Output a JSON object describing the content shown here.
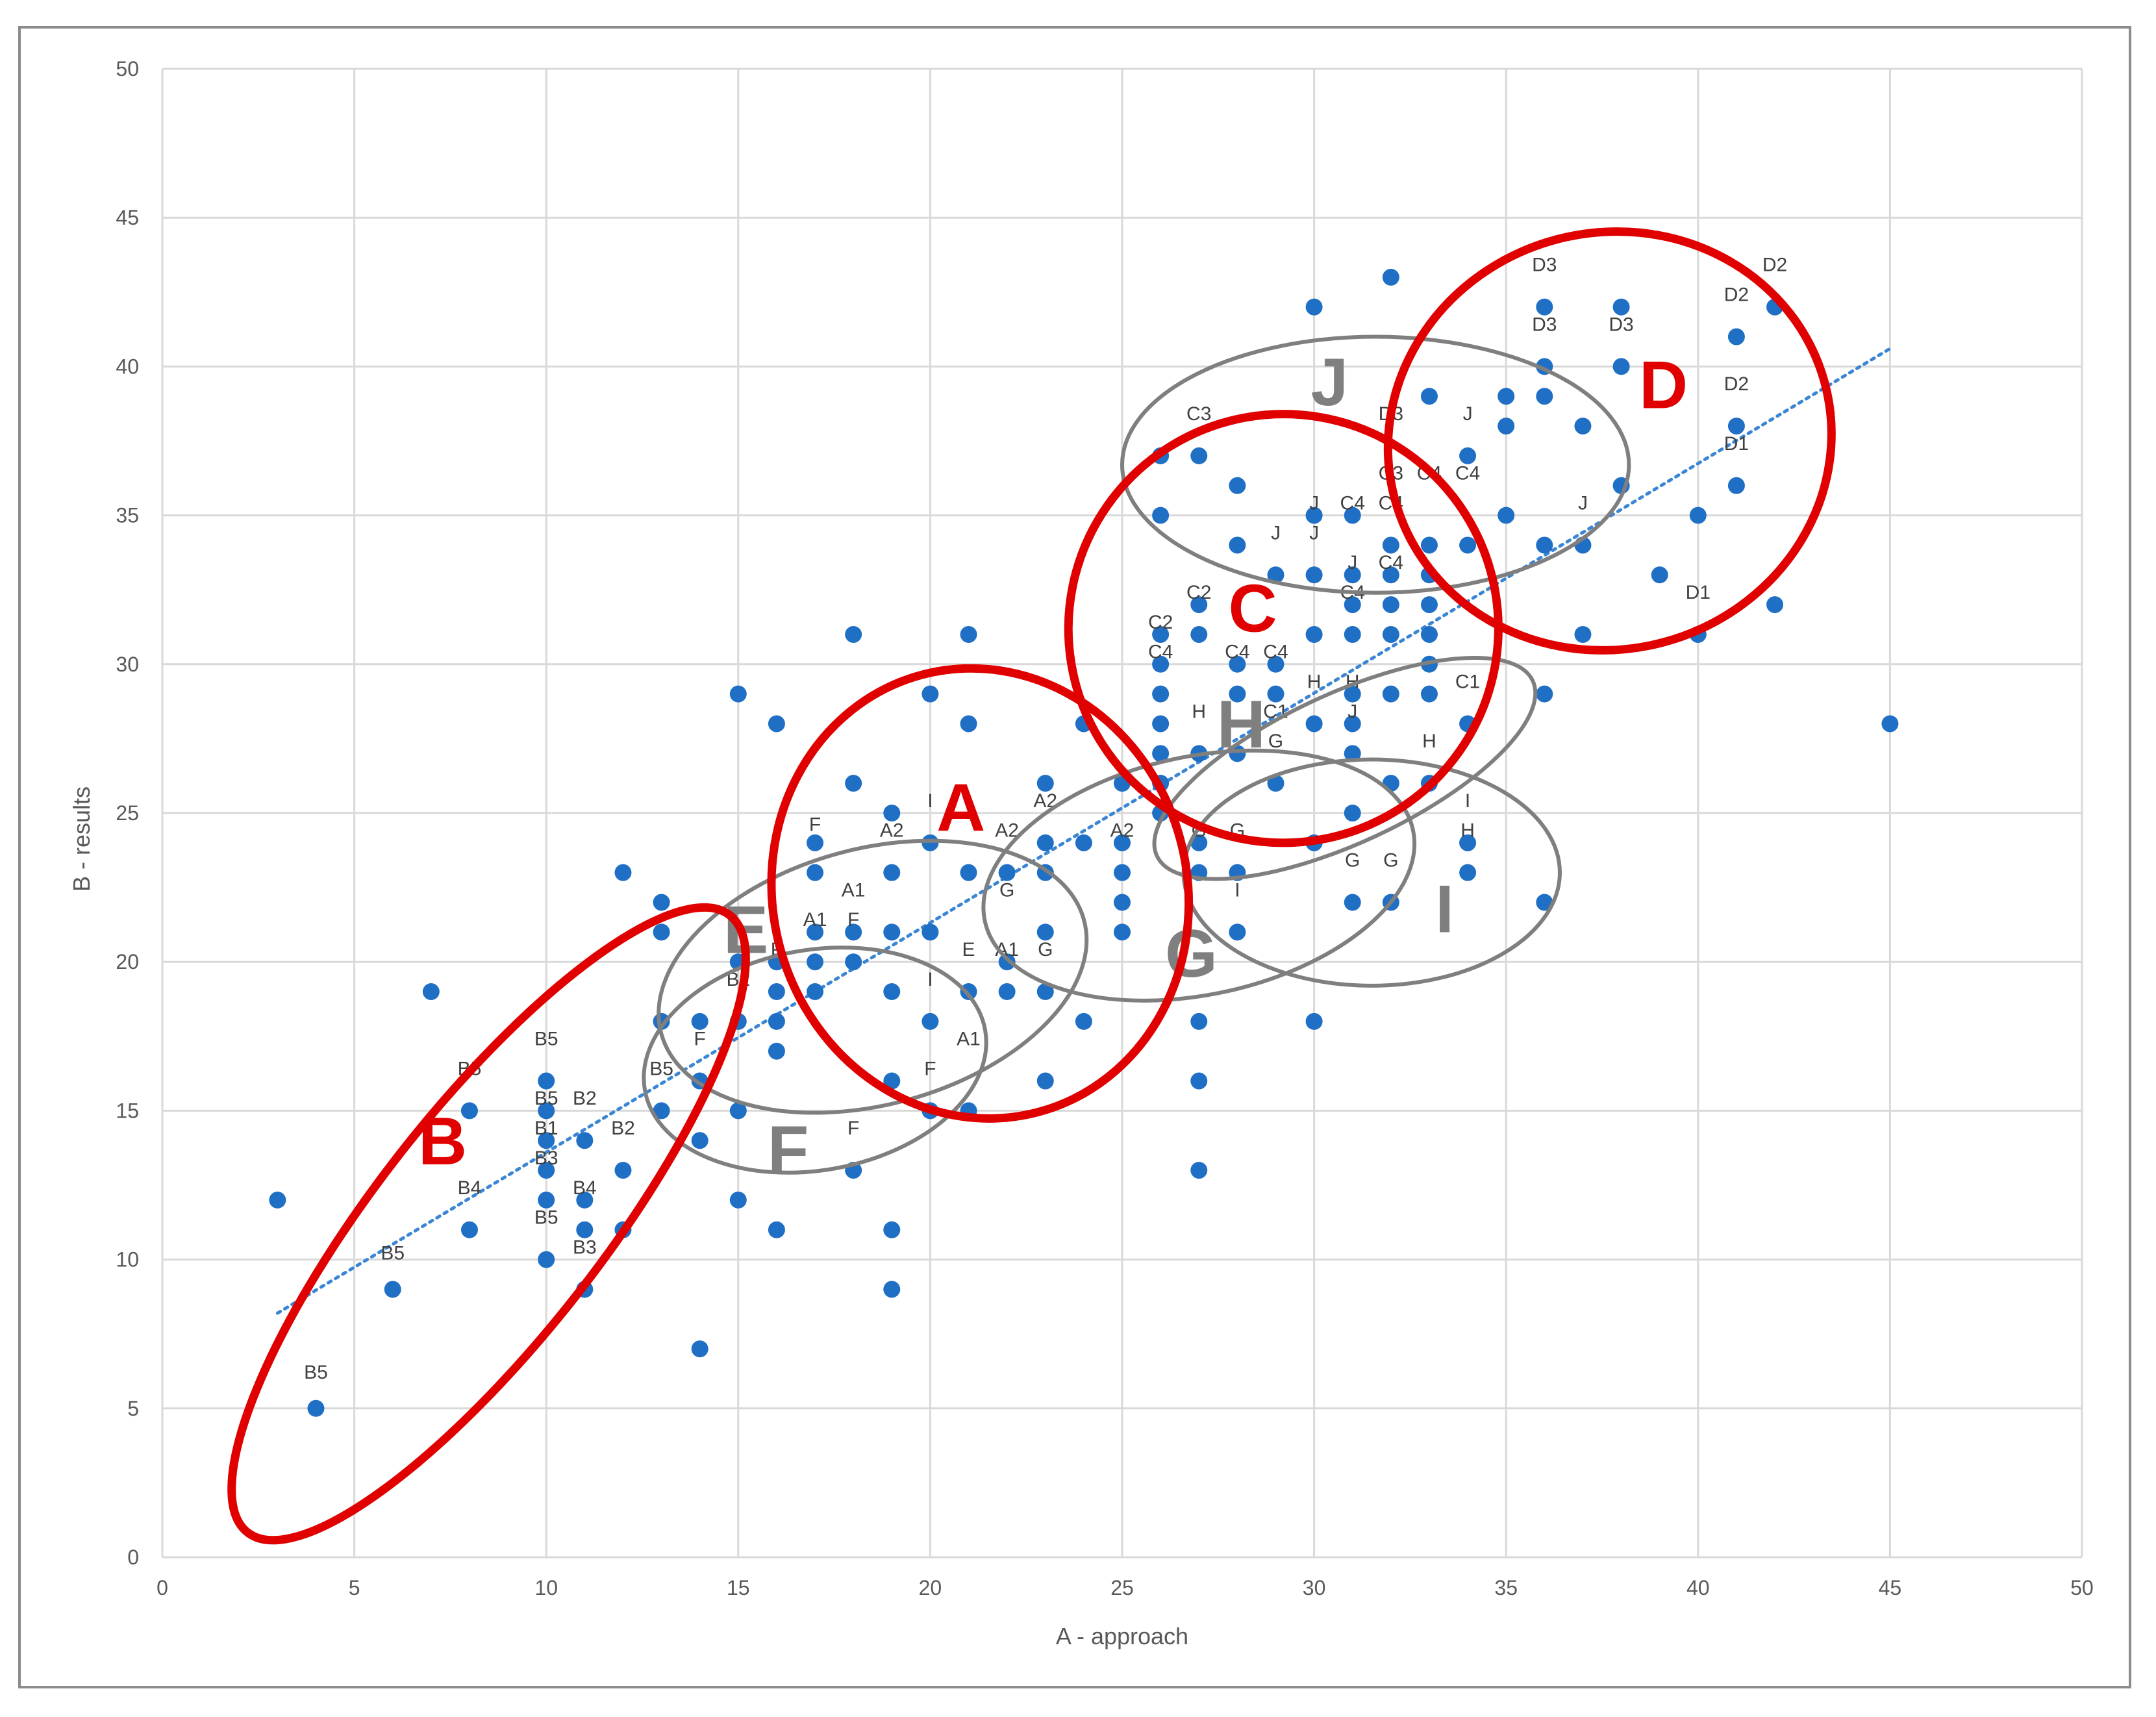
{
  "chart_data": {
    "type": "scatter",
    "title": "",
    "xlabel": "A - approach",
    "ylabel": "B - results",
    "xlim": [
      0,
      50
    ],
    "ylim": [
      0,
      50
    ],
    "xticks": [
      "0",
      "5",
      "10",
      "15",
      "20",
      "25",
      "30",
      "35",
      "40",
      "45",
      "50"
    ],
    "yticks": [
      "0",
      "5",
      "10",
      "15",
      "20",
      "25",
      "30",
      "35",
      "40",
      "45",
      "50"
    ],
    "grid": true,
    "legend": "none",
    "colors": {
      "points": "#1f6fc5",
      "trendline": "#3a86d4",
      "highlight": "#e00000",
      "group": "#7f7f7f",
      "grid": "#d9d9d9"
    },
    "points": [
      [
        3,
        12
      ],
      [
        4,
        5
      ],
      [
        6,
        9
      ],
      [
        7,
        19
      ],
      [
        8,
        15
      ],
      [
        8,
        11
      ],
      [
        10,
        16
      ],
      [
        10,
        15
      ],
      [
        10,
        14
      ],
      [
        10,
        13
      ],
      [
        10,
        12
      ],
      [
        10,
        10
      ],
      [
        11,
        14
      ],
      [
        11,
        12
      ],
      [
        11,
        11
      ],
      [
        11,
        9
      ],
      [
        12,
        23
      ],
      [
        12,
        13
      ],
      [
        12,
        11
      ],
      [
        13,
        22
      ],
      [
        13,
        21
      ],
      [
        13,
        18
      ],
      [
        13,
        15
      ],
      [
        14,
        18
      ],
      [
        14,
        16
      ],
      [
        14,
        14
      ],
      [
        14,
        7
      ],
      [
        15,
        29
      ],
      [
        15,
        20
      ],
      [
        15,
        18
      ],
      [
        15,
        15
      ],
      [
        15,
        12
      ],
      [
        16,
        28
      ],
      [
        16,
        20
      ],
      [
        16,
        19
      ],
      [
        16,
        18
      ],
      [
        16,
        17
      ],
      [
        16,
        11
      ],
      [
        17,
        24
      ],
      [
        17,
        23
      ],
      [
        17,
        21
      ],
      [
        17,
        20
      ],
      [
        17,
        19
      ],
      [
        18,
        31
      ],
      [
        18,
        26
      ],
      [
        18,
        21
      ],
      [
        18,
        20
      ],
      [
        18,
        13
      ],
      [
        19,
        25
      ],
      [
        19,
        23
      ],
      [
        19,
        21
      ],
      [
        19,
        19
      ],
      [
        19,
        16
      ],
      [
        19,
        11
      ],
      [
        19,
        9
      ],
      [
        20,
        29
      ],
      [
        20,
        24
      ],
      [
        20,
        21
      ],
      [
        20,
        18
      ],
      [
        20,
        15
      ],
      [
        21,
        31
      ],
      [
        21,
        28
      ],
      [
        21,
        23
      ],
      [
        21,
        19
      ],
      [
        21,
        15
      ],
      [
        22,
        23
      ],
      [
        22,
        20
      ],
      [
        22,
        19
      ],
      [
        23,
        26
      ],
      [
        23,
        24
      ],
      [
        23,
        23
      ],
      [
        23,
        21
      ],
      [
        23,
        19
      ],
      [
        23,
        16
      ],
      [
        24,
        28
      ],
      [
        24,
        24
      ],
      [
        24,
        18
      ],
      [
        25,
        26
      ],
      [
        25,
        24
      ],
      [
        25,
        23
      ],
      [
        25,
        22
      ],
      [
        25,
        21
      ],
      [
        26,
        37
      ],
      [
        26,
        35
      ],
      [
        26,
        31
      ],
      [
        26,
        30
      ],
      [
        26,
        29
      ],
      [
        26,
        28
      ],
      [
        26,
        27
      ],
      [
        26,
        26
      ],
      [
        26,
        25
      ],
      [
        27,
        37
      ],
      [
        27,
        32
      ],
      [
        27,
        31
      ],
      [
        27,
        27
      ],
      [
        27,
        24
      ],
      [
        27,
        23
      ],
      [
        27,
        18
      ],
      [
        27,
        16
      ],
      [
        27,
        13
      ],
      [
        28,
        36
      ],
      [
        28,
        34
      ],
      [
        28,
        30
      ],
      [
        28,
        29
      ],
      [
        28,
        27
      ],
      [
        28,
        23
      ],
      [
        28,
        21
      ],
      [
        29,
        33
      ],
      [
        29,
        30
      ],
      [
        29,
        29
      ],
      [
        29,
        26
      ],
      [
        30,
        42
      ],
      [
        30,
        35
      ],
      [
        30,
        33
      ],
      [
        30,
        31
      ],
      [
        30,
        28
      ],
      [
        30,
        24
      ],
      [
        30,
        18
      ],
      [
        31,
        35
      ],
      [
        31,
        33
      ],
      [
        31,
        32
      ],
      [
        31,
        31
      ],
      [
        31,
        29
      ],
      [
        31,
        28
      ],
      [
        31,
        27
      ],
      [
        31,
        25
      ],
      [
        31,
        22
      ],
      [
        32,
        43
      ],
      [
        32,
        34
      ],
      [
        32,
        33
      ],
      [
        32,
        32
      ],
      [
        32,
        31
      ],
      [
        32,
        29
      ],
      [
        32,
        26
      ],
      [
        32,
        22
      ],
      [
        33,
        39
      ],
      [
        33,
        34
      ],
      [
        33,
        33
      ],
      [
        33,
        32
      ],
      [
        33,
        31
      ],
      [
        33,
        30
      ],
      [
        33,
        29
      ],
      [
        33,
        26
      ],
      [
        34,
        37
      ],
      [
        34,
        34
      ],
      [
        34,
        28
      ],
      [
        34,
        24
      ],
      [
        34,
        23
      ],
      [
        35,
        39
      ],
      [
        35,
        38
      ],
      [
        35,
        35
      ],
      [
        36,
        42
      ],
      [
        36,
        40
      ],
      [
        36,
        39
      ],
      [
        36,
        34
      ],
      [
        36,
        29
      ],
      [
        36,
        22
      ],
      [
        37,
        38
      ],
      [
        37,
        34
      ],
      [
        37,
        31
      ],
      [
        38,
        42
      ],
      [
        38,
        40
      ],
      [
        38,
        36
      ],
      [
        39,
        33
      ],
      [
        40,
        35
      ],
      [
        40,
        31
      ],
      [
        41,
        41
      ],
      [
        41,
        38
      ],
      [
        41,
        36
      ],
      [
        42,
        42
      ],
      [
        42,
        32
      ],
      [
        45,
        28
      ]
    ],
    "point_labels": [
      {
        "text": "B5",
        "x": 4,
        "y": 6
      },
      {
        "text": "B5",
        "x": 6,
        "y": 10
      },
      {
        "text": "B5",
        "x": 8,
        "y": 16.2
      },
      {
        "text": "B4",
        "x": 8,
        "y": 12.2
      },
      {
        "text": "B5",
        "x": 10,
        "y": 17.2
      },
      {
        "text": "B5",
        "x": 10,
        "y": 15.2
      },
      {
        "text": "B1",
        "x": 10,
        "y": 14.2
      },
      {
        "text": "B3",
        "x": 10,
        "y": 13.2
      },
      {
        "text": "B5",
        "x": 10,
        "y": 11.2
      },
      {
        "text": "B2",
        "x": 11,
        "y": 15.2
      },
      {
        "text": "B4",
        "x": 11,
        "y": 12.2
      },
      {
        "text": "B3",
        "x": 11,
        "y": 10.2
      },
      {
        "text": "B2",
        "x": 12,
        "y": 14.2
      },
      {
        "text": "B5",
        "x": 13,
        "y": 16.2
      },
      {
        "text": "B2",
        "x": 15,
        "y": 19.2
      },
      {
        "text": "F",
        "x": 14,
        "y": 17.2
      },
      {
        "text": "F",
        "x": 16,
        "y": 20.2
      },
      {
        "text": "F",
        "x": 17,
        "y": 24.4
      },
      {
        "text": "A1",
        "x": 18,
        "y": 22.2
      },
      {
        "text": "F",
        "x": 18,
        "y": 21.2
      },
      {
        "text": "A1",
        "x": 17,
        "y": 21.2
      },
      {
        "text": "F",
        "x": 18,
        "y": 14.2
      },
      {
        "text": "A2",
        "x": 19,
        "y": 24.2
      },
      {
        "text": "I",
        "x": 20,
        "y": 25.2
      },
      {
        "text": "F",
        "x": 20,
        "y": 16.2
      },
      {
        "text": "I",
        "x": 20,
        "y": 19.2
      },
      {
        "text": "A1",
        "x": 21,
        "y": 17.2
      },
      {
        "text": "E",
        "x": 21,
        "y": 20.2
      },
      {
        "text": "A1",
        "x": 22,
        "y": 20.2
      },
      {
        "text": "G",
        "x": 22,
        "y": 22.2
      },
      {
        "text": "A2",
        "x": 22,
        "y": 24.2
      },
      {
        "text": "A2",
        "x": 23,
        "y": 25.2
      },
      {
        "text": "G",
        "x": 23,
        "y": 20.2
      },
      {
        "text": "A2",
        "x": 25,
        "y": 24.2
      },
      {
        "text": "G",
        "x": 27,
        "y": 24.2
      },
      {
        "text": "G",
        "x": 28,
        "y": 24.2
      },
      {
        "text": "I",
        "x": 28,
        "y": 22.2
      },
      {
        "text": "C3",
        "x": 27,
        "y": 38.2
      },
      {
        "text": "C2",
        "x": 27,
        "y": 32.2
      },
      {
        "text": "C2",
        "x": 26,
        "y": 31.2
      },
      {
        "text": "C4",
        "x": 26,
        "y": 30.2
      },
      {
        "text": "C4",
        "x": 28,
        "y": 30.2
      },
      {
        "text": "C4",
        "x": 29,
        "y": 30.2
      },
      {
        "text": "H",
        "x": 27,
        "y": 28.2
      },
      {
        "text": "C1",
        "x": 29,
        "y": 28.2
      },
      {
        "text": "G",
        "x": 29,
        "y": 27.2
      },
      {
        "text": "J",
        "x": 29,
        "y": 34.2
      },
      {
        "text": "J",
        "x": 30,
        "y": 35.2
      },
      {
        "text": "J",
        "x": 30,
        "y": 34.2
      },
      {
        "text": "C4",
        "x": 31,
        "y": 35.2
      },
      {
        "text": "J",
        "x": 31,
        "y": 33.2
      },
      {
        "text": "C4",
        "x": 31,
        "y": 32.2
      },
      {
        "text": "H",
        "x": 30,
        "y": 29.2
      },
      {
        "text": "H",
        "x": 31,
        "y": 29.2
      },
      {
        "text": "J",
        "x": 31,
        "y": 28.2
      },
      {
        "text": "G",
        "x": 31,
        "y": 23.2
      },
      {
        "text": "G",
        "x": 32,
        "y": 23.2
      },
      {
        "text": "C3",
        "x": 32,
        "y": 36.2
      },
      {
        "text": "C4",
        "x": 33,
        "y": 36.2
      },
      {
        "text": "C4",
        "x": 34,
        "y": 36.2
      },
      {
        "text": "C4",
        "x": 32,
        "y": 35.2
      },
      {
        "text": "C4",
        "x": 32,
        "y": 33.2
      },
      {
        "text": "H",
        "x": 33,
        "y": 27.2
      },
      {
        "text": "C1",
        "x": 34,
        "y": 29.2
      },
      {
        "text": "I",
        "x": 34,
        "y": 25.2
      },
      {
        "text": "H",
        "x": 34,
        "y": 24.2
      },
      {
        "text": "D3",
        "x": 32,
        "y": 38.2
      },
      {
        "text": "J",
        "x": 34,
        "y": 38.2
      },
      {
        "text": "J",
        "x": 37,
        "y": 35.2
      },
      {
        "text": "D3",
        "x": 36,
        "y": 43.2
      },
      {
        "text": "D3",
        "x": 36,
        "y": 41.2
      },
      {
        "text": "D3",
        "x": 38,
        "y": 41.2
      },
      {
        "text": "D2",
        "x": 41,
        "y": 42.2
      },
      {
        "text": "D2",
        "x": 42,
        "y": 43.2
      },
      {
        "text": "D2",
        "x": 41,
        "y": 39.2
      },
      {
        "text": "D1",
        "x": 41,
        "y": 37.2
      },
      {
        "text": "D1",
        "x": 40,
        "y": 32.2
      }
    ],
    "trendline": {
      "x": [
        3,
        45
      ],
      "y": [
        8.2,
        40.6
      ]
    },
    "highlight_groups": [
      {
        "label": "A",
        "cx": 21.3,
        "cy": 22.3,
        "rx": 5.4,
        "ry": 7.6,
        "angle": -15,
        "label_x": 20.8,
        "label_y": 24.4
      },
      {
        "label": "B",
        "cx": 8.5,
        "cy": 11.2,
        "rx": 10.2,
        "ry": 3.8,
        "angle": -52,
        "label_x": 7.3,
        "label_y": 13.2
      },
      {
        "label": "C",
        "cx": 29.2,
        "cy": 31.2,
        "rx": 5.6,
        "ry": 7.2,
        "angle": -10,
        "label_x": 28.4,
        "label_y": 31.1
      },
      {
        "label": "D",
        "cx": 37.7,
        "cy": 37.5,
        "rx": 5.8,
        "ry": 7.0,
        "angle": -15,
        "label_x": 39.1,
        "label_y": 38.6
      }
    ],
    "groups": [
      {
        "label": "E",
        "cx": 18.5,
        "cy": 19.5,
        "rx": 5.7,
        "ry": 4.3,
        "angle": -15,
        "label_x": 15.2,
        "label_y": 20.3
      },
      {
        "label": "F",
        "cx": 17,
        "cy": 16.7,
        "rx": 4.5,
        "ry": 3.7,
        "angle": -10,
        "label_x": 16.3,
        "label_y": 12.9
      },
      {
        "label": "G",
        "cx": 27,
        "cy": 22.9,
        "rx": 5.7,
        "ry": 4.0,
        "angle": -12,
        "label_x": 26.8,
        "label_y": 19.5
      },
      {
        "label": "H",
        "cx": 30.8,
        "cy": 26.5,
        "rx": 5.4,
        "ry": 2.5,
        "angle": -25,
        "label_x": 28.1,
        "label_y": 27.2
      },
      {
        "label": "I",
        "cx": 31.5,
        "cy": 23,
        "rx": 4.9,
        "ry": 3.8,
        "angle": 0,
        "label_x": 33.4,
        "label_y": 21.0
      },
      {
        "label": "J",
        "cx": 31.6,
        "cy": 36.7,
        "rx": 6.6,
        "ry": 4.3,
        "angle": 0,
        "label_x": 30.4,
        "label_y": 38.7
      }
    ]
  }
}
